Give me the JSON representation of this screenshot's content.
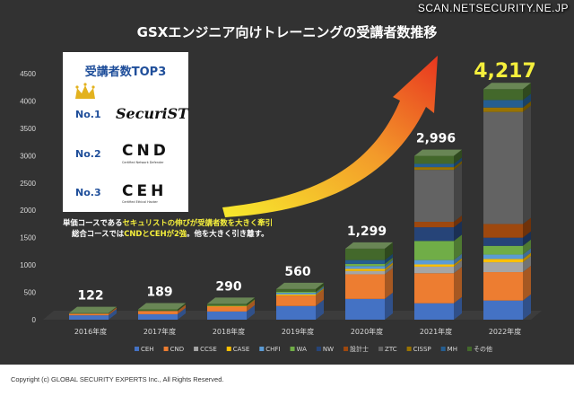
{
  "watermark": "SCAN.NETSECURITY.NE.JP",
  "copyright": "Copyright (c) GLOBAL SECURITY EXPERTS Inc., All Rights Reserved.",
  "annotation": {
    "line1_a": "単価コースである",
    "line1_b": "セキュリストの伸びが受講者数を大きく牽引",
    "line2_a": "総合コースでは",
    "line2_b": "CNDとCEHが2強",
    "line2_c": "。他を大きく引き離す。"
  },
  "top3": {
    "title": "受講者数TOP3",
    "entries": [
      {
        "rank": "No.1",
        "logo": "SecuriST",
        "subtitle": ""
      },
      {
        "rank": "No.2",
        "logo": "CND",
        "subtitle": "Certified Network Defender"
      },
      {
        "rank": "No.3",
        "logo": "CEH",
        "subtitle": "Certified Ethical Hacker"
      }
    ]
  },
  "colors": {
    "background": "#323232",
    "axis_text": "#d9d9d9",
    "total_label": "#ffffff",
    "highlight_total": "#f5ef3c",
    "arrow_start": "#f7ea2c",
    "arrow_end": "#e8361f"
  },
  "icons": [
    "crown-icon",
    "trend-arrow-icon"
  ],
  "chart_data": {
    "type": "bar",
    "stacked": true,
    "style": "3d",
    "title": "GSXエンジニア向けトレーニングの受講者数推移",
    "xlabel": "",
    "ylabel": "",
    "ylim": [
      0,
      4500
    ],
    "yticks": [
      0,
      500,
      1000,
      1500,
      2000,
      2500,
      3000,
      3500,
      4000,
      4500
    ],
    "grid": false,
    "legend_position": "bottom",
    "categories": [
      "2016年度",
      "2017年度",
      "2018年度",
      "2019年度",
      "2020年度",
      "2021年度",
      "2022年度"
    ],
    "totals": [
      122,
      189,
      290,
      560,
      1299,
      2996,
      4217
    ],
    "total_labels": [
      "122",
      "189",
      "290",
      "560",
      "1,299",
      "2,996",
      "4,217"
    ],
    "series": [
      {
        "name": "CEH",
        "color": "#4472c4",
        "values": [
          80,
          100,
          150,
          250,
          380,
          300,
          350
        ]
      },
      {
        "name": "CND",
        "color": "#ed7d31",
        "values": [
          30,
          60,
          90,
          190,
          450,
          550,
          520
        ]
      },
      {
        "name": "CCSE",
        "color": "#a5a5a5",
        "values": [
          0,
          0,
          0,
          0,
          60,
          120,
          180
        ]
      },
      {
        "name": "CASE",
        "color": "#ffc000",
        "values": [
          0,
          0,
          10,
          20,
          40,
          40,
          60
        ]
      },
      {
        "name": "CHFI",
        "color": "#5b9bd5",
        "values": [
          0,
          0,
          0,
          30,
          50,
          80,
          80
        ]
      },
      {
        "name": "WA",
        "color": "#70ad47",
        "values": [
          0,
          0,
          10,
          20,
          40,
          350,
          160
        ]
      },
      {
        "name": "NW",
        "color": "#264478",
        "values": [
          0,
          0,
          0,
          0,
          0,
          250,
          150
        ]
      },
      {
        "name": "設計士",
        "color": "#9e480e",
        "values": [
          0,
          0,
          0,
          0,
          0,
          100,
          250
        ]
      },
      {
        "name": "ZTC",
        "color": "#636363",
        "values": [
          0,
          0,
          0,
          0,
          0,
          950,
          2050
        ]
      },
      {
        "name": "CISSP",
        "color": "#997300",
        "values": [
          0,
          0,
          0,
          0,
          0,
          50,
          80
        ]
      },
      {
        "name": "MH",
        "color": "#255e91",
        "values": [
          0,
          0,
          0,
          0,
          70,
          60,
          137
        ]
      },
      {
        "name": "その他",
        "color": "#43682b",
        "values": [
          12,
          29,
          30,
          50,
          209,
          146,
          200
        ]
      }
    ]
  }
}
